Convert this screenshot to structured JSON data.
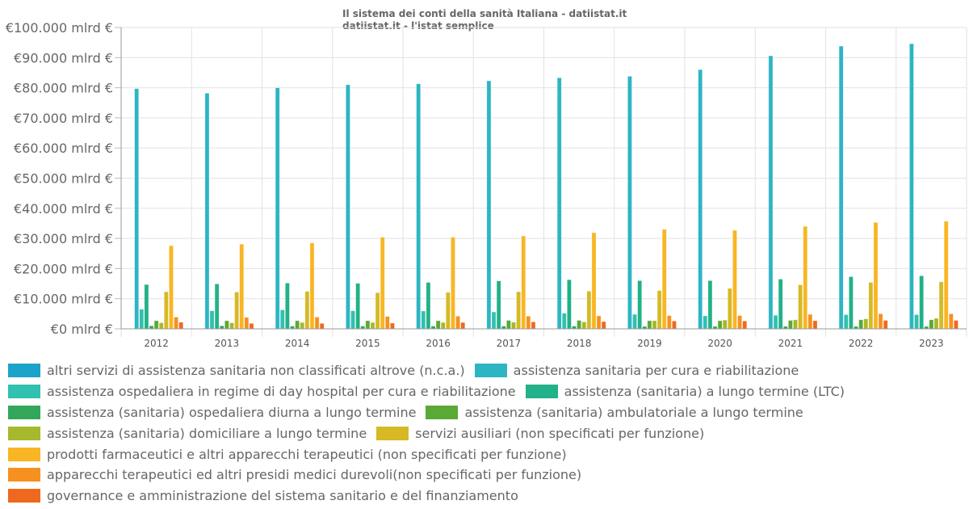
{
  "chart_data": {
    "type": "bar",
    "title": "Il sistema dei conti della sanità Italiana - datiistat.it",
    "subtitle": "datiistat.it - l'istat semplice",
    "xlabel": "",
    "ylabel": "",
    "ylim": [
      0,
      100000
    ],
    "yticks": [
      0,
      10000,
      20000,
      30000,
      40000,
      50000,
      60000,
      70000,
      80000,
      90000,
      100000
    ],
    "ytick_labels": [
      "€0 mlrd €",
      "€10.000 mlrd €",
      "€20.000 mlrd €",
      "€30.000 mlrd €",
      "€40.000 mlrd €",
      "€50.000 mlrd €",
      "€60.000 mlrd €",
      "€70.000 mlrd €",
      "€80.000 mlrd €",
      "€90.000 mlrd €",
      "€100.000 mlrd €"
    ],
    "grid": true,
    "legend_position": "bottom",
    "categories": [
      "2012",
      "2013",
      "2014",
      "2015",
      "2016",
      "2017",
      "2018",
      "2019",
      "2020",
      "2021",
      "2022",
      "2023"
    ],
    "series": [
      {
        "name": "altri servizi di assistenza sanitaria non classificati altrove (n.c.a.)",
        "color": "#1ba3c9",
        "values": [
          0,
          0,
          0,
          0,
          0,
          0,
          0,
          0,
          0,
          0,
          0,
          0
        ]
      },
      {
        "name": "assistenza sanitaria per cura e riabilitazione",
        "color": "#2db5c4",
        "values": [
          79700,
          78200,
          80000,
          81000,
          81300,
          82300,
          83300,
          83800,
          86000,
          90600,
          93800,
          94600
        ]
      },
      {
        "name": "assistenza ospedaliera in regime di day hospital per cura e riabilitazione",
        "color": "#32c0b0",
        "values": [
          6500,
          6000,
          6300,
          6000,
          5900,
          5600,
          5200,
          4800,
          4300,
          4500,
          4700,
          4700
        ]
      },
      {
        "name": "assistenza (sanitaria)  a lungo termine (LTC)",
        "color": "#22b188",
        "values": [
          14700,
          14900,
          15200,
          15100,
          15400,
          15900,
          16300,
          16000,
          16000,
          16500,
          17300,
          17600
        ]
      },
      {
        "name": "assistenza (sanitaria) ospedaliera diurna a lungo termine",
        "color": "#34a65a",
        "values": [
          1000,
          1000,
          900,
          900,
          900,
          900,
          900,
          800,
          800,
          800,
          800,
          800
        ]
      },
      {
        "name": "assistenza (sanitaria) ambulatoriale a lungo termine",
        "color": "#5aa835",
        "values": [
          2700,
          2700,
          2700,
          2700,
          2700,
          2800,
          2800,
          2700,
          2700,
          2800,
          3000,
          3000
        ]
      },
      {
        "name": "assistenza (sanitaria) domiciliare a lungo termine",
        "color": "#a6b82c",
        "values": [
          2000,
          2000,
          2100,
          2100,
          2100,
          2200,
          2300,
          2700,
          2900,
          3000,
          3300,
          3500
        ]
      },
      {
        "name": "servizi ausiliari (non specificati per funzione)",
        "color": "#d6b924",
        "values": [
          12300,
          12200,
          12400,
          12000,
          12100,
          12300,
          12500,
          12700,
          13400,
          14600,
          15400,
          15600
        ]
      },
      {
        "name": "prodotti farmaceutici e altri apparecchi terapeutici (non specificati per funzione)",
        "color": "#f8b624",
        "values": [
          27600,
          28100,
          28500,
          30400,
          30400,
          30800,
          31900,
          33000,
          32700,
          34000,
          35300,
          35700
        ]
      },
      {
        "name": "apparecchi terapeutici ed altri presidi medici durevoli(non specificati per funzione)",
        "color": "#f6911f",
        "values": [
          3900,
          3800,
          3900,
          4100,
          4200,
          4200,
          4300,
          4400,
          4400,
          4800,
          5000,
          5000
        ]
      },
      {
        "name": "governance e amministrazione del sistema sanitario e del finanziamento",
        "color": "#ef681e",
        "values": [
          2200,
          1800,
          1800,
          1900,
          2100,
          2300,
          2400,
          2600,
          2600,
          2700,
          2800,
          2800
        ]
      }
    ]
  },
  "legend_rows": [
    [
      0,
      1
    ],
    [
      2,
      3
    ],
    [
      4,
      5
    ],
    [
      6,
      7
    ],
    [
      8
    ],
    [
      9
    ],
    [
      10
    ]
  ]
}
